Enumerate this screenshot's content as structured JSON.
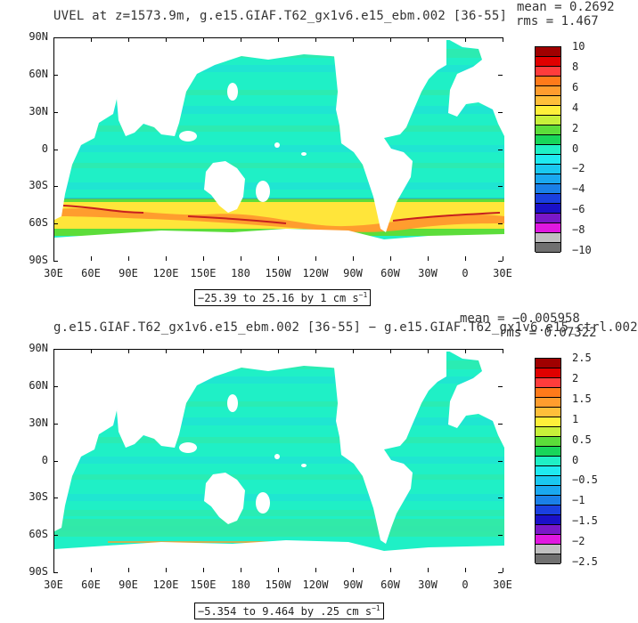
{
  "colors": {
    "land": "#ffffff",
    "ocean_base": "#1ff0c6",
    "band_a": "#36e8a0",
    "band_b": "#1fdcdc",
    "acc_yellow": "#ffe53a",
    "acc_orange": "#ff9d2e",
    "acc_red": "#c61f1f",
    "acc_green": "#5cdd3a",
    "acc_blue": "#1a80e8"
  },
  "ticks": {
    "lat": [
      "90N",
      "60N",
      "30N",
      "0",
      "30S",
      "60S",
      "90S"
    ],
    "lon": [
      "30E",
      "60E",
      "90E",
      "120E",
      "150E",
      "180",
      "150W",
      "120W",
      "90W",
      "60W",
      "30W",
      "0",
      "30E"
    ]
  },
  "panels": [
    {
      "id": "top",
      "title": "UVEL at z=1573.9m, g.e15.GIAF.T62_gx1v6.e15_ebm.002 [36-55]",
      "mean": "mean = 0.2692",
      "rms": "rms = 1.467",
      "range_text": "−25.39 to 25.16 by 1 cm s",
      "range_unit_exp": "−1",
      "colorbar_labels": [
        "10",
        "8",
        "6",
        "4",
        "2",
        "0",
        "−2",
        "−4",
        "−6",
        "−8",
        "−10"
      ],
      "colorbar_colors": [
        "#a00000",
        "#e00000",
        "#ff3c3c",
        "#ff7a1a",
        "#ff9d2e",
        "#ffbf3a",
        "#ffef3a",
        "#c8f03a",
        "#5cdd3a",
        "#18d65a",
        "#1ff0c6",
        "#1feaf0",
        "#1ac8f0",
        "#1aa8f0",
        "#1a80e8",
        "#1a40e0",
        "#1a10c8",
        "#7a18c8",
        "#e018e0",
        "#c0c0c0",
        "#707070"
      ],
      "acc_intensity": "strong"
    },
    {
      "id": "bottom",
      "title": "g.e15.GIAF.T62_gx1v6.e15_ebm.002 [36-55] − g.e15.GIAF.T62_gx1v6.e15_ctrl.002",
      "mean": "mean = −0.005958",
      "rms": "rms = 0.07322",
      "range_text": "−5.354 to 9.464 by .25 cm s",
      "range_unit_exp": "−1",
      "colorbar_labels": [
        "2.5",
        "2",
        "1.5",
        "1",
        "0.5",
        "0",
        "−0.5",
        "−1",
        "−1.5",
        "−2",
        "−2.5"
      ],
      "colorbar_colors": [
        "#a00000",
        "#e00000",
        "#ff3c3c",
        "#ff7a1a",
        "#ff9d2e",
        "#ffbf3a",
        "#ffef3a",
        "#c8f03a",
        "#5cdd3a",
        "#18d65a",
        "#1ff0c6",
        "#1feaf0",
        "#1ac8f0",
        "#1aa8f0",
        "#1a80e8",
        "#1a40e0",
        "#1a10c8",
        "#7a18c8",
        "#e018e0",
        "#c0c0c0",
        "#707070"
      ],
      "acc_intensity": "weak"
    }
  ]
}
